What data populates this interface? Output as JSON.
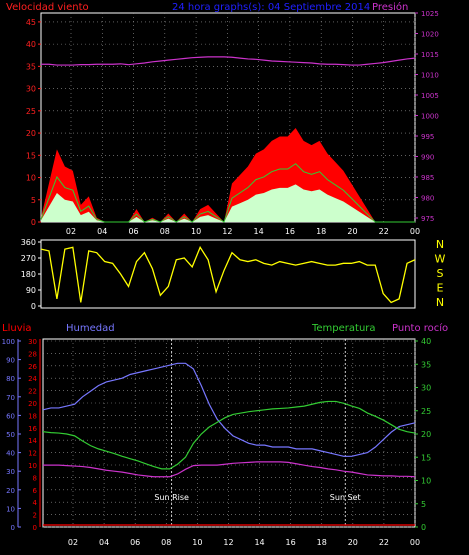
{
  "header": {
    "left": "Velocidad viento",
    "center": "24 hora graphs(s): 04 Septiembre 2014",
    "right": "Presión"
  },
  "colors": {
    "wind_label": "#ff2020",
    "title": "#2020ff",
    "pressure": "#cc33cc",
    "wind": "#ff0000",
    "wind_avg": "#33cc33",
    "wind_low": "#ccffcc",
    "direction": "#ffff00",
    "humidity": "#7777ff",
    "temperature": "#33cc33",
    "dewpoint": "#cc33cc",
    "rain": "#ff0000",
    "grid": "#999999",
    "frame": "#ffffff"
  },
  "chart_data": [
    {
      "id": "wind-pressure",
      "type": "area",
      "left_axis": {
        "ticks": [
          "0",
          "5",
          "10",
          "15",
          "20",
          "25",
          "30",
          "35",
          "40",
          "45"
        ]
      },
      "right_axis": {
        "ticks": [
          "975",
          "980",
          "985",
          "990",
          "995",
          "1000",
          "1005",
          "1010",
          "1015",
          "1020",
          "1025"
        ]
      },
      "x_ticks": [
        "02",
        "04",
        "06",
        "08",
        "10",
        "12",
        "14",
        "16",
        "18",
        "20",
        "22",
        "00"
      ],
      "series": [
        {
          "name": "Velocidad viento",
          "values": [
            1,
            9,
            17,
            13,
            12,
            4,
            6,
            1,
            0,
            0,
            0,
            0,
            3,
            0,
            1,
            0,
            2,
            0,
            2,
            0,
            3,
            4,
            2,
            0,
            9,
            11,
            13,
            16,
            17,
            19,
            20,
            20,
            22,
            19,
            18,
            19,
            16,
            14,
            12,
            9,
            6,
            3,
            0,
            0,
            0,
            0,
            0,
            0
          ]
        },
        {
          "name": "Presión",
          "values": [
            1012.5,
            1012.5,
            1012.3,
            1012.3,
            1012.3,
            1012.4,
            1012.4,
            1012.5,
            1012.5,
            1012.5,
            1012.6,
            1012.4,
            1012.6,
            1012.8,
            1013.1,
            1013.3,
            1013.5,
            1013.7,
            1013.9,
            1014.1,
            1014.2,
            1014.3,
            1014.3,
            1014.3,
            1014.2,
            1014.0,
            1013.8,
            1013.7,
            1013.5,
            1013.3,
            1013.2,
            1013.1,
            1013.0,
            1012.9,
            1012.8,
            1012.6,
            1012.5,
            1012.5,
            1012.4,
            1012.3,
            1012.3,
            1012.5,
            1012.7,
            1012.9,
            1013.2,
            1013.5,
            1013.8,
            1014.0
          ]
        }
      ]
    },
    {
      "id": "direction",
      "type": "line",
      "left_axis": {
        "ticks": [
          "0",
          "90",
          "180",
          "270",
          "360"
        ]
      },
      "right_axis": {
        "ticks": [
          "N",
          "W",
          "S",
          "E",
          "N"
        ]
      },
      "series": [
        {
          "name": "Dirección",
          "values": [
            320,
            310,
            40,
            320,
            330,
            20,
            310,
            300,
            250,
            240,
            180,
            110,
            250,
            300,
            210,
            60,
            110,
            260,
            270,
            220,
            330,
            260,
            80,
            200,
            300,
            260,
            250,
            260,
            240,
            230,
            250,
            240,
            230,
            240,
            250,
            240,
            230,
            230,
            240,
            240,
            250,
            230,
            230,
            70,
            20,
            40,
            240,
            260
          ]
        }
      ]
    },
    {
      "id": "temperature-humidity",
      "type": "line",
      "header": {
        "left": "Lluvia",
        "humidity": "Humedad",
        "temperature": "Temperatura",
        "dewpoint": "Punto rocío"
      },
      "left_axis_humidity": {
        "ticks": [
          "0",
          "10",
          "20",
          "30",
          "40",
          "50",
          "60",
          "70",
          "80",
          "90",
          "100"
        ]
      },
      "left_axis_rain": {
        "ticks": [
          "0",
          "2",
          "4",
          "6",
          "8",
          "10",
          "12",
          "14",
          "16",
          "18",
          "20",
          "22",
          "24",
          "26",
          "28",
          "30"
        ]
      },
      "right_axis": {
        "ticks": [
          "0",
          "5",
          "10",
          "15",
          "20",
          "25",
          "30",
          "35",
          "40"
        ]
      },
      "x_ticks": [
        "02",
        "04",
        "06",
        "08",
        "10",
        "12",
        "14",
        "16",
        "18",
        "20",
        "22",
        "00"
      ],
      "markers": [
        {
          "label": "Sun Rise",
          "hour": 8.3
        },
        {
          "label": "Sun Set",
          "hour": 19.5
        }
      ],
      "series": [
        {
          "name": "Humedad",
          "values": [
            63,
            64,
            64,
            65,
            66,
            70,
            73,
            76,
            78,
            79,
            80,
            82,
            83,
            84,
            85,
            86,
            87,
            88,
            88,
            85,
            76,
            66,
            58,
            53,
            49,
            47,
            45,
            44,
            44,
            43,
            43,
            43,
            42,
            42,
            42,
            41,
            40,
            39,
            38,
            38,
            39,
            40,
            43,
            47,
            51,
            54,
            55,
            56
          ]
        },
        {
          "name": "Temperatura",
          "values": [
            20.5,
            20.3,
            20.2,
            20,
            19.6,
            18.5,
            17.5,
            16.8,
            16.3,
            15.8,
            15.2,
            14.7,
            14.2,
            13.6,
            13,
            12.5,
            12.5,
            13.5,
            15,
            18,
            20,
            21.5,
            22.5,
            23.5,
            24.2,
            24.5,
            24.8,
            25.0,
            25.2,
            25.4,
            25.5,
            25.6,
            25.8,
            26.0,
            26.4,
            26.8,
            27.0,
            27.0,
            26.6,
            26.0,
            25.5,
            24.5,
            23.8,
            23.0,
            22.0,
            21.0,
            20.5,
            20.2
          ]
        },
        {
          "name": "Punto rocío",
          "values": [
            13.3,
            13.3,
            13.3,
            13.2,
            13.1,
            13,
            12.8,
            12.5,
            12.2,
            12,
            11.8,
            11.5,
            11.2,
            11.0,
            10.8,
            10.8,
            10.8,
            11.4,
            12.4,
            13.2,
            13.3,
            13.3,
            13.3,
            13.5,
            13.7,
            13.8,
            13.9,
            14.0,
            14.0,
            14.0,
            14.0,
            13.9,
            13.6,
            13.3,
            13.0,
            12.8,
            12.5,
            12.3,
            12.0,
            11.8,
            11.5,
            11.2,
            11.1,
            11.0,
            11.0,
            10.9,
            10.9,
            10.8
          ]
        },
        {
          "name": "Lluvia",
          "values": [
            0,
            0,
            0,
            0,
            0,
            0,
            0,
            0,
            0,
            0,
            0,
            0,
            0,
            0,
            0,
            0,
            0,
            0,
            0,
            0,
            0,
            0,
            0,
            0,
            0,
            0,
            0,
            0,
            0,
            0,
            0,
            0,
            0,
            0,
            0,
            0,
            0,
            0,
            0,
            0,
            0,
            0,
            0,
            0,
            0,
            0,
            0,
            0
          ]
        }
      ]
    }
  ]
}
